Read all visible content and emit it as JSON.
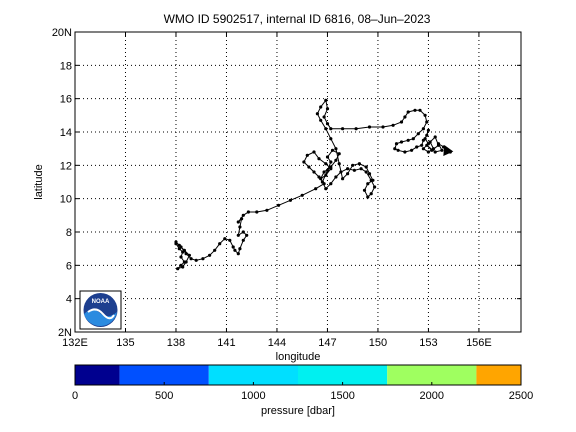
{
  "chart_data": {
    "type": "line",
    "title": "WMO ID 5902517, internal ID 6816, 08–Jun–2023",
    "xlabel": "longitude",
    "ylabel": "latitude",
    "xlim": [
      132,
      158.5
    ],
    "ylim": [
      2,
      20
    ],
    "x_ticks": [
      {
        "value": 132,
        "label": "132E"
      },
      {
        "value": 135,
        "label": "135"
      },
      {
        "value": 138,
        "label": "138"
      },
      {
        "value": 141,
        "label": "141"
      },
      {
        "value": 144,
        "label": "144"
      },
      {
        "value": 147,
        "label": "147"
      },
      {
        "value": 150,
        "label": "150"
      },
      {
        "value": 153,
        "label": "153"
      },
      {
        "value": 156,
        "label": "156E"
      }
    ],
    "y_ticks": [
      {
        "value": 2,
        "label": "2N"
      },
      {
        "value": 4,
        "label": "4"
      },
      {
        "value": 6,
        "label": "6"
      },
      {
        "value": 8,
        "label": "8"
      },
      {
        "value": 10,
        "label": "10"
      },
      {
        "value": 12,
        "label": "12"
      },
      {
        "value": 14,
        "label": "14"
      },
      {
        "value": 16,
        "label": "16"
      },
      {
        "value": 18,
        "label": "18"
      },
      {
        "value": 20,
        "label": "20N"
      }
    ],
    "grid": true,
    "series": [
      {
        "color": "#000000",
        "points": [
          [
            138.0,
            7.3
          ],
          [
            138.2,
            7.0
          ],
          [
            138.4,
            6.8
          ],
          [
            138.3,
            6.5
          ],
          [
            138.5,
            6.2
          ],
          [
            138.3,
            6.0
          ],
          [
            138.1,
            5.8
          ],
          [
            138.4,
            5.9
          ],
          [
            138.6,
            6.2
          ],
          [
            138.8,
            6.6
          ],
          [
            138.5,
            6.9
          ],
          [
            138.2,
            7.2
          ],
          [
            138.0,
            7.4
          ],
          [
            138.3,
            7.1
          ],
          [
            138.6,
            6.7
          ],
          [
            138.9,
            6.4
          ],
          [
            139.2,
            6.3
          ],
          [
            139.6,
            6.4
          ],
          [
            140.0,
            6.6
          ],
          [
            140.3,
            6.9
          ],
          [
            140.6,
            7.3
          ],
          [
            140.9,
            7.6
          ],
          [
            141.2,
            7.5
          ],
          [
            141.4,
            7.1
          ],
          [
            141.5,
            6.9
          ],
          [
            141.7,
            6.7
          ],
          [
            141.8,
            7.0
          ],
          [
            142.0,
            7.5
          ],
          [
            142.2,
            7.8
          ],
          [
            142.0,
            8.0
          ],
          [
            141.7,
            7.8
          ],
          [
            141.8,
            8.3
          ],
          [
            141.9,
            8.8
          ],
          [
            141.7,
            8.6
          ],
          [
            142.0,
            9.0
          ],
          [
            142.3,
            9.2
          ],
          [
            142.8,
            9.2
          ],
          [
            143.4,
            9.3
          ],
          [
            144.1,
            9.6
          ],
          [
            144.8,
            9.9
          ],
          [
            145.5,
            10.2
          ],
          [
            146.3,
            10.6
          ],
          [
            146.8,
            10.9
          ],
          [
            146.5,
            11.3
          ],
          [
            146.2,
            11.6
          ],
          [
            145.9,
            11.9
          ],
          [
            145.6,
            12.2
          ],
          [
            145.8,
            12.6
          ],
          [
            146.2,
            12.8
          ],
          [
            146.5,
            12.4
          ],
          [
            146.9,
            12.1
          ],
          [
            147.2,
            11.8
          ],
          [
            146.9,
            11.4
          ],
          [
            146.6,
            11.2
          ],
          [
            146.8,
            11.6
          ],
          [
            147.2,
            11.9
          ],
          [
            147.5,
            12.3
          ],
          [
            147.7,
            12.7
          ],
          [
            147.3,
            12.9
          ],
          [
            147.0,
            12.5
          ],
          [
            147.2,
            12.2
          ],
          [
            147.0,
            11.7
          ],
          [
            146.7,
            11.0
          ],
          [
            146.9,
            10.6
          ],
          [
            147.2,
            10.9
          ],
          [
            147.5,
            11.3
          ],
          [
            147.8,
            11.6
          ],
          [
            148.2,
            11.8
          ],
          [
            148.6,
            11.7
          ],
          [
            149.0,
            11.8
          ],
          [
            149.3,
            11.6
          ],
          [
            149.6,
            11.1
          ],
          [
            149.8,
            10.7
          ],
          [
            149.6,
            10.3
          ],
          [
            149.4,
            10.1
          ],
          [
            149.2,
            10.5
          ],
          [
            149.4,
            10.9
          ],
          [
            149.7,
            11.1
          ],
          [
            149.5,
            11.5
          ],
          [
            149.3,
            11.9
          ],
          [
            148.9,
            12.1
          ],
          [
            148.5,
            12.0
          ],
          [
            148.2,
            11.5
          ],
          [
            147.9,
            11.2
          ],
          [
            147.7,
            12.1
          ],
          [
            147.5,
            13.0
          ],
          [
            147.2,
            13.6
          ],
          [
            146.9,
            14.2
          ],
          [
            146.6,
            14.7
          ],
          [
            146.4,
            15.1
          ],
          [
            146.6,
            15.5
          ],
          [
            146.9,
            15.9
          ],
          [
            147.0,
            15.4
          ],
          [
            146.8,
            14.9
          ],
          [
            147.0,
            14.5
          ],
          [
            147.2,
            14.2
          ],
          [
            147.9,
            14.2
          ],
          [
            148.7,
            14.2
          ],
          [
            149.5,
            14.3
          ],
          [
            150.3,
            14.3
          ],
          [
            150.9,
            14.4
          ],
          [
            151.4,
            14.6
          ],
          [
            151.6,
            14.9
          ],
          [
            151.8,
            15.2
          ],
          [
            152.2,
            15.3
          ],
          [
            152.5,
            15.3
          ],
          [
            152.8,
            15.0
          ],
          [
            152.9,
            14.6
          ],
          [
            152.7,
            14.2
          ],
          [
            152.4,
            13.9
          ],
          [
            152.1,
            13.6
          ],
          [
            151.8,
            13.5
          ],
          [
            151.4,
            13.4
          ],
          [
            151.1,
            13.3
          ],
          [
            151.0,
            13.0
          ],
          [
            151.2,
            12.9
          ],
          [
            151.6,
            12.8
          ],
          [
            152.0,
            12.9
          ],
          [
            152.3,
            13.1
          ],
          [
            152.6,
            13.2
          ],
          [
            152.7,
            13.5
          ],
          [
            152.9,
            13.8
          ],
          [
            153.0,
            14.1
          ],
          [
            152.8,
            13.6
          ],
          [
            153.0,
            13.3
          ],
          [
            152.7,
            13.0
          ],
          [
            153.0,
            12.8
          ],
          [
            153.3,
            13.0
          ],
          [
            153.1,
            13.4
          ],
          [
            153.4,
            13.7
          ],
          [
            153.6,
            13.2
          ],
          [
            153.2,
            12.9
          ],
          [
            152.9,
            13.2
          ],
          [
            153.4,
            12.8
          ],
          [
            153.8,
            12.9
          ],
          [
            153.6,
            13.3
          ],
          [
            153.9,
            13.1
          ],
          [
            154.1,
            12.9
          ],
          [
            154.3,
            12.8
          ]
        ]
      }
    ],
    "colorbar": {
      "label": "pressure [dbar]",
      "range": [
        0,
        2500
      ],
      "ticks": [
        {
          "value": 0,
          "label": "0"
        },
        {
          "value": 500,
          "label": "500"
        },
        {
          "value": 1000,
          "label": "1000"
        },
        {
          "value": 1500,
          "label": "1500"
        },
        {
          "value": 2000,
          "label": "2000"
        },
        {
          "value": 2500,
          "label": "2500"
        }
      ],
      "segments": [
        {
          "from": 0,
          "to": 250,
          "color": "#00008f"
        },
        {
          "from": 250,
          "to": 750,
          "color": "#0050ff"
        },
        {
          "from": 750,
          "to": 1250,
          "color": "#00dfff"
        },
        {
          "from": 1250,
          "to": 1750,
          "color": "#00f0f0"
        },
        {
          "from": 1750,
          "to": 2250,
          "color": "#9fff60"
        },
        {
          "from": 2250,
          "to": 2500,
          "color": "#ffa500"
        }
      ]
    },
    "logo": {
      "text": "NOAA",
      "colors": {
        "ring": "#1d3f8f",
        "wave": "#2b8be0",
        "white": "#ffffff"
      }
    }
  }
}
